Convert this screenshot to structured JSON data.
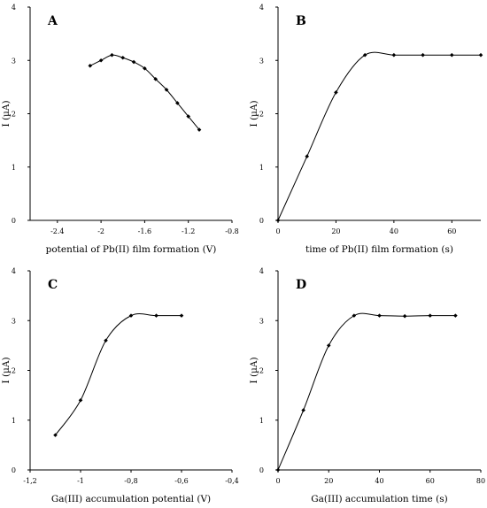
{
  "chart_data": [
    {
      "type": "line",
      "panel_label": "A",
      "xlabel": "potential of Pb(II) film formation (V)",
      "ylabel": "I (µA)",
      "xlim": [
        -2.65,
        -0.8
      ],
      "ylim": [
        0,
        4
      ],
      "xticks": [
        -2.4,
        -2.0,
        -1.6,
        -1.2,
        -0.8
      ],
      "xtick_labels": [
        "-2.4",
        "-2",
        "-1.6",
        "-1.2",
        "-0.8"
      ],
      "yticks": [
        0,
        1,
        2,
        3,
        4
      ],
      "ytick_labels": [
        "0",
        "1",
        "2",
        "3",
        "4"
      ],
      "x": [
        -2.1,
        -2.0,
        -1.9,
        -1.8,
        -1.7,
        -1.6,
        -1.5,
        -1.4,
        -1.3,
        -1.2,
        -1.1
      ],
      "y": [
        2.9,
        3.0,
        3.1,
        3.05,
        2.97,
        2.85,
        2.65,
        2.45,
        2.2,
        1.95,
        1.7
      ]
    },
    {
      "type": "line",
      "panel_label": "B",
      "xlabel": "time of Pb(II) film formation (s)",
      "ylabel": "I (µA)",
      "xlim": [
        0,
        70
      ],
      "ylim": [
        0,
        4
      ],
      "xticks": [
        0,
        20,
        40,
        60
      ],
      "xtick_labels": [
        "0",
        "20",
        "40",
        "60"
      ],
      "yticks": [
        0,
        1,
        2,
        3,
        4
      ],
      "ytick_labels": [
        "0",
        "1",
        "2",
        "3",
        "4"
      ],
      "x": [
        0,
        10,
        20,
        30,
        40,
        50,
        60,
        70
      ],
      "y": [
        0,
        1.2,
        2.4,
        3.1,
        3.1,
        3.1,
        3.1,
        3.1
      ]
    },
    {
      "type": "line",
      "panel_label": "C",
      "xlabel": "Ga(III) accumulation potential (V)",
      "ylabel": "I (µA)",
      "xlim": [
        -1.2,
        -0.4
      ],
      "ylim": [
        0,
        4
      ],
      "xticks": [
        -1.2,
        -1.0,
        -0.8,
        -0.6,
        -0.4
      ],
      "xtick_labels": [
        "-1,2",
        "-1",
        "-0,8",
        "-0,6",
        "-0,4"
      ],
      "yticks": [
        0,
        1,
        2,
        3,
        4
      ],
      "ytick_labels": [
        "0",
        "1",
        "2",
        "3",
        "4"
      ],
      "x": [
        -1.1,
        -1.0,
        -0.9,
        -0.8,
        -0.7,
        -0.6
      ],
      "y": [
        0.7,
        1.4,
        2.6,
        3.1,
        3.1,
        3.1
      ]
    },
    {
      "type": "line",
      "panel_label": "D",
      "xlabel": "Ga(III) accumulation time (s)",
      "ylabel": "I (µA)",
      "xlim": [
        0,
        80
      ],
      "ylim": [
        0,
        4
      ],
      "xticks": [
        0,
        20,
        40,
        60,
        80
      ],
      "xtick_labels": [
        "0",
        "20",
        "40",
        "60",
        "80"
      ],
      "yticks": [
        0,
        1,
        2,
        3,
        4
      ],
      "ytick_labels": [
        "0",
        "1",
        "2",
        "3",
        "4"
      ],
      "x": [
        0,
        10,
        20,
        30,
        40,
        50,
        60,
        70
      ],
      "y": [
        0,
        1.2,
        2.5,
        3.1,
        3.1,
        3.09,
        3.1,
        3.1
      ]
    }
  ]
}
